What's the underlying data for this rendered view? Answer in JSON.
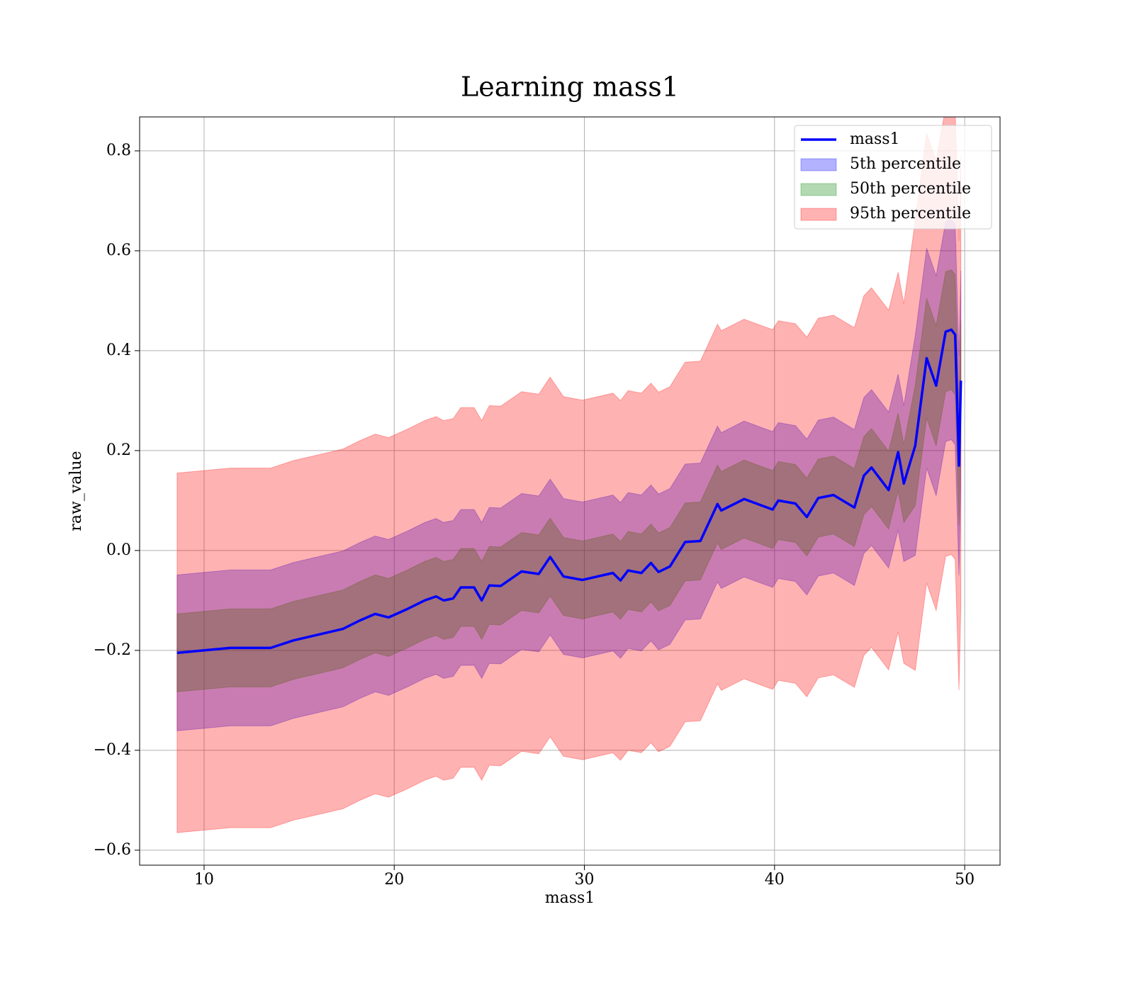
{
  "chart_data": {
    "type": "line",
    "title": "Learning mass1",
    "x_label": "mass1",
    "y_label": "raw_value",
    "x": [
      8.58,
      11.38,
      13.5,
      14.7,
      16.4,
      17.3,
      18.2,
      19.0,
      19.7,
      20.7,
      21.6,
      22.2,
      22.6,
      23.1,
      23.5,
      24.2,
      24.6,
      25.0,
      25.6,
      26.7,
      27.6,
      28.2,
      28.9,
      29.9,
      31.5,
      31.9,
      32.3,
      33.0,
      33.5,
      33.9,
      34.5,
      35.3,
      36.1,
      37.0,
      37.2,
      38.4,
      39.9,
      40.2,
      41.1,
      41.7,
      42.3,
      43.1,
      44.2,
      44.7,
      45.1,
      46.0,
      46.5,
      46.8,
      47.4,
      48.0,
      48.5,
      49.0,
      49.3,
      49.5,
      49.7,
      49.8
    ],
    "series": [
      {
        "name": "mass1",
        "color": "#0000ff",
        "values": [
          -0.205,
          -0.195,
          -0.195,
          -0.18,
          -0.165,
          -0.157,
          -0.14,
          -0.127,
          -0.134,
          -0.117,
          -0.1,
          -0.092,
          -0.1,
          -0.096,
          -0.074,
          -0.074,
          -0.1,
          -0.07,
          -0.071,
          -0.042,
          -0.047,
          -0.013,
          -0.052,
          -0.059,
          -0.045,
          -0.06,
          -0.04,
          -0.045,
          -0.025,
          -0.043,
          -0.032,
          0.017,
          0.019,
          0.093,
          0.08,
          0.103,
          0.082,
          0.1,
          0.094,
          0.067,
          0.105,
          0.111,
          0.086,
          0.15,
          0.166,
          0.121,
          0.197,
          0.134,
          0.21,
          0.385,
          0.33,
          0.438,
          0.442,
          0.432,
          0.17,
          0.34
        ]
      }
    ],
    "bands": [
      {
        "name": "5th percentile",
        "color": "#0000ff",
        "lower": [
          -0.361,
          -0.351,
          -0.351,
          -0.336,
          -0.321,
          -0.313,
          -0.296,
          -0.283,
          -0.29,
          -0.273,
          -0.256,
          -0.248,
          -0.256,
          -0.252,
          -0.23,
          -0.23,
          -0.256,
          -0.226,
          -0.227,
          -0.198,
          -0.203,
          -0.169,
          -0.208,
          -0.215,
          -0.201,
          -0.216,
          -0.196,
          -0.201,
          -0.181,
          -0.199,
          -0.188,
          -0.139,
          -0.137,
          -0.063,
          -0.076,
          -0.053,
          -0.074,
          -0.056,
          -0.062,
          -0.089,
          -0.051,
          -0.045,
          -0.07,
          -0.006,
          0.01,
          -0.035,
          0.041,
          -0.022,
          -0.01,
          0.165,
          0.11,
          0.218,
          0.222,
          0.212,
          -0.05,
          0.12
        ],
        "upper": [
          -0.049,
          -0.039,
          -0.039,
          -0.024,
          -0.009,
          -0.001,
          0.016,
          0.029,
          0.022,
          0.039,
          0.056,
          0.064,
          0.056,
          0.06,
          0.082,
          0.082,
          0.056,
          0.086,
          0.085,
          0.114,
          0.109,
          0.143,
          0.104,
          0.097,
          0.111,
          0.096,
          0.116,
          0.111,
          0.131,
          0.113,
          0.124,
          0.173,
          0.175,
          0.249,
          0.236,
          0.259,
          0.238,
          0.256,
          0.25,
          0.223,
          0.261,
          0.267,
          0.242,
          0.306,
          0.322,
          0.277,
          0.353,
          0.29,
          0.43,
          0.605,
          0.55,
          0.658,
          0.662,
          0.652,
          0.39,
          0.56
        ]
      },
      {
        "name": "50th percentile",
        "color": "#008000",
        "lower": [
          -0.283,
          -0.273,
          -0.273,
          -0.258,
          -0.243,
          -0.235,
          -0.218,
          -0.205,
          -0.212,
          -0.195,
          -0.178,
          -0.17,
          -0.178,
          -0.174,
          -0.152,
          -0.152,
          -0.178,
          -0.148,
          -0.149,
          -0.12,
          -0.125,
          -0.091,
          -0.13,
          -0.137,
          -0.123,
          -0.138,
          -0.118,
          -0.123,
          -0.103,
          -0.121,
          -0.11,
          -0.061,
          -0.059,
          0.015,
          0.002,
          0.025,
          0.004,
          0.022,
          0.016,
          -0.011,
          0.027,
          0.033,
          0.008,
          0.072,
          0.088,
          0.043,
          0.119,
          0.056,
          0.09,
          0.265,
          0.21,
          0.318,
          0.322,
          0.312,
          0.05,
          0.22
        ],
        "upper": [
          -0.127,
          -0.117,
          -0.117,
          -0.102,
          -0.087,
          -0.079,
          -0.062,
          -0.049,
          -0.056,
          -0.039,
          -0.022,
          -0.014,
          -0.022,
          -0.018,
          0.004,
          0.004,
          -0.022,
          0.008,
          0.007,
          0.036,
          0.031,
          0.065,
          0.026,
          0.019,
          0.033,
          0.018,
          0.038,
          0.033,
          0.053,
          0.035,
          0.046,
          0.095,
          0.097,
          0.171,
          0.158,
          0.181,
          0.16,
          0.178,
          0.172,
          0.145,
          0.183,
          0.189,
          0.164,
          0.228,
          0.244,
          0.199,
          0.275,
          0.212,
          0.33,
          0.505,
          0.45,
          0.558,
          0.562,
          0.552,
          0.29,
          0.46
        ]
      },
      {
        "name": "95th percentile",
        "color": "#ff0000",
        "lower": [
          -0.565,
          -0.555,
          -0.555,
          -0.54,
          -0.525,
          -0.517,
          -0.5,
          -0.487,
          -0.494,
          -0.477,
          -0.46,
          -0.452,
          -0.46,
          -0.456,
          -0.434,
          -0.434,
          -0.46,
          -0.43,
          -0.431,
          -0.402,
          -0.407,
          -0.373,
          -0.412,
          -0.419,
          -0.405,
          -0.42,
          -0.4,
          -0.405,
          -0.385,
          -0.403,
          -0.392,
          -0.343,
          -0.341,
          -0.267,
          -0.28,
          -0.257,
          -0.278,
          -0.26,
          -0.266,
          -0.293,
          -0.255,
          -0.249,
          -0.274,
          -0.21,
          -0.194,
          -0.239,
          -0.163,
          -0.226,
          -0.24,
          -0.065,
          -0.12,
          -0.012,
          -0.008,
          -0.018,
          -0.28,
          -0.11
        ],
        "upper": [
          0.155,
          0.165,
          0.165,
          0.18,
          0.195,
          0.203,
          0.22,
          0.233,
          0.226,
          0.243,
          0.26,
          0.268,
          0.26,
          0.264,
          0.286,
          0.286,
          0.26,
          0.29,
          0.289,
          0.318,
          0.313,
          0.347,
          0.308,
          0.301,
          0.315,
          0.3,
          0.32,
          0.315,
          0.335,
          0.317,
          0.328,
          0.377,
          0.379,
          0.453,
          0.44,
          0.463,
          0.442,
          0.46,
          0.454,
          0.427,
          0.465,
          0.471,
          0.446,
          0.51,
          0.526,
          0.481,
          0.557,
          0.494,
          0.66,
          0.835,
          0.78,
          0.888,
          0.892,
          0.882,
          0.62,
          0.79
        ]
      }
    ],
    "xlim": [
      6.61,
      51.86
    ],
    "ylim": [
      -0.63,
      0.868
    ],
    "xticks": [
      10,
      20,
      30,
      40,
      50
    ],
    "yticks": [
      {
        "value": -0.6,
        "label": "−0.6"
      },
      {
        "value": -0.4,
        "label": "−0.4"
      },
      {
        "value": -0.2,
        "label": "−0.2"
      },
      {
        "value": 0,
        "label": "0.0"
      },
      0.2,
      0.4,
      0.6,
      0.8
    ],
    "grid": true,
    "legend": "upper right",
    "band_opacity": 0.3
  }
}
